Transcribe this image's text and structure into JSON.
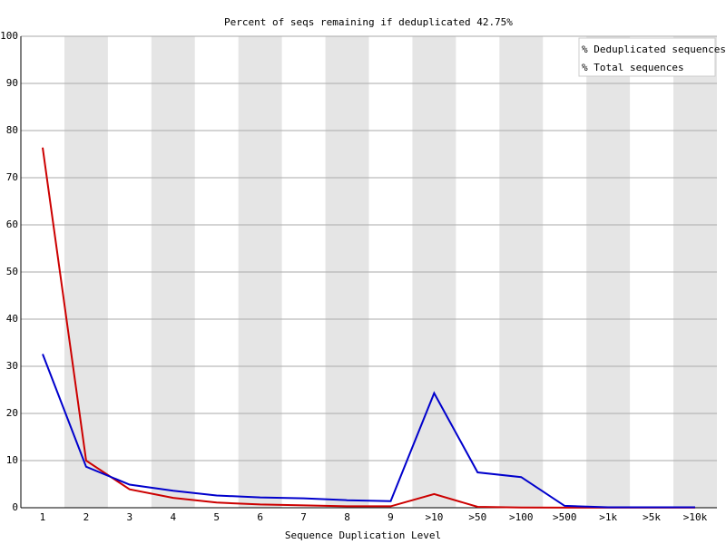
{
  "chart_data": {
    "type": "line",
    "title": "Percent of seqs remaining if deduplicated 42.75%",
    "x_label": "Sequence Duplication Level",
    "categories": [
      "1",
      "2",
      "3",
      "4",
      "5",
      "6",
      "7",
      "8",
      "9",
      ">10",
      ">50",
      ">100",
      ">500",
      ">1k",
      ">5k",
      ">10k"
    ],
    "series": [
      {
        "name": "% Deduplicated sequences",
        "color": "#cc0000",
        "values": [
          76.4,
          10.0,
          3.9,
          2.1,
          1.1,
          0.7,
          0.5,
          0.3,
          0.3,
          2.9,
          0.2,
          0.05,
          0.02,
          0.01,
          0.01,
          0.01
        ]
      },
      {
        "name": "% Total sequences",
        "color": "#0000cc",
        "values": [
          32.6,
          8.7,
          4.9,
          3.6,
          2.6,
          2.2,
          2.0,
          1.6,
          1.4,
          24.3,
          7.5,
          6.5,
          0.4,
          0.1,
          0.1,
          0.1
        ]
      }
    ],
    "ylim": [
      0,
      100
    ],
    "yticks": [
      0,
      10,
      20,
      30,
      40,
      50,
      60,
      70,
      80,
      90,
      100
    ],
    "grid": true,
    "legend": "top-right"
  }
}
